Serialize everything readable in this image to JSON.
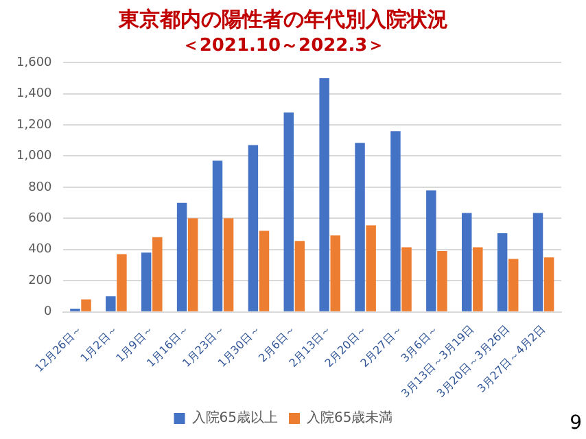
{
  "chart_data": {
    "type": "bar",
    "title": "東京都内の陽性者の年代別入院状況",
    "subtitle": "＜2021.10～2022.3＞",
    "categories": [
      "12月26日～",
      "1月2日～",
      "1月9日～",
      "1月16日～",
      "1月23日～",
      "1月30日～",
      "2月6日～",
      "2月13日～",
      "2月20日～",
      "2月27日～",
      "3月6日～",
      "3月13日～3月19日",
      "3月20日～3月26日",
      "3月27日～4月2日"
    ],
    "series": [
      {
        "name": "入院65歳以上",
        "color": "#4472c4",
        "values": [
          20,
          100,
          380,
          700,
          970,
          1070,
          1280,
          1500,
          1085,
          1160,
          780,
          635,
          505,
          635
        ]
      },
      {
        "name": "入院65歳未満",
        "color": "#ed7d31",
        "values": [
          80,
          370,
          480,
          600,
          600,
          520,
          455,
          490,
          555,
          415,
          390,
          415,
          340,
          350
        ]
      }
    ],
    "ylim": [
      0,
      1600
    ],
    "yticks": [
      {
        "value": 0,
        "label": "0"
      },
      {
        "value": 200,
        "label": "200"
      },
      {
        "value": 400,
        "label": "400"
      },
      {
        "value": 600,
        "label": "600"
      },
      {
        "value": 800,
        "label": "800"
      },
      {
        "value": 1000,
        "label": "1,000"
      },
      {
        "value": 1200,
        "label": "1,200"
      },
      {
        "value": 1400,
        "label": "1,400"
      },
      {
        "value": 1600,
        "label": "1,600"
      }
    ],
    "grid": "y",
    "legend": "bottom",
    "annotations": [
      "9"
    ]
  }
}
